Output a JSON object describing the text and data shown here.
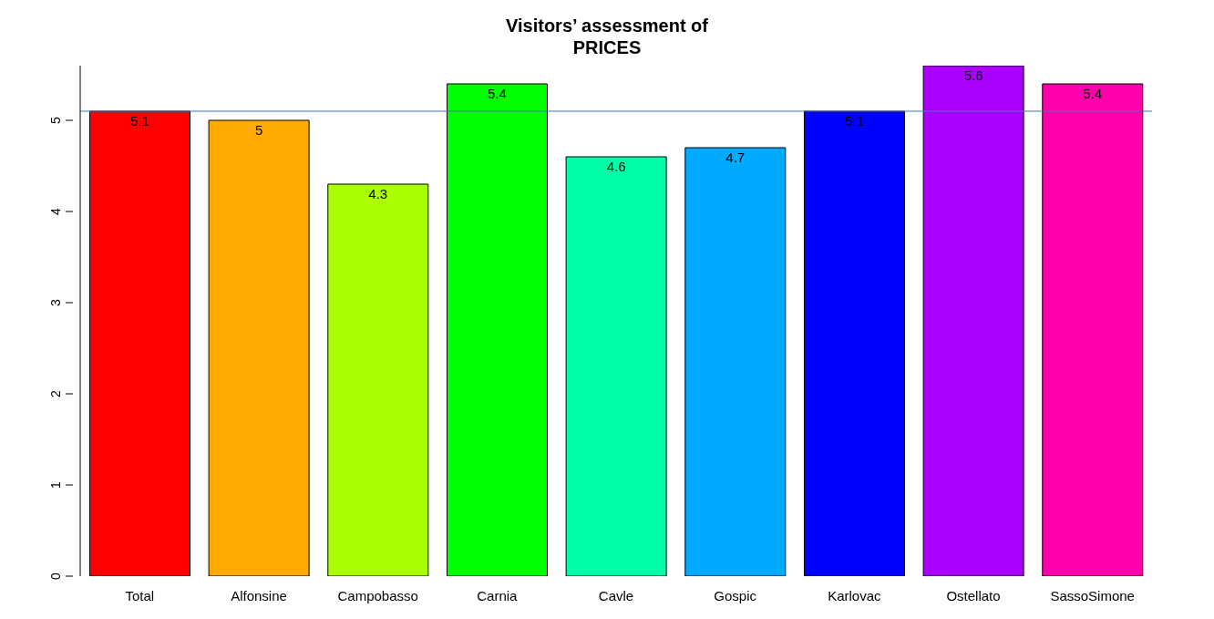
{
  "chart_data": {
    "type": "bar",
    "title": "Visitors’ assessment of\nPRICES",
    "categories": [
      "Total",
      "Alfonsine",
      "Campobasso",
      "Carnia",
      "Cavle",
      "Gospic",
      "Karlovac",
      "Ostellato",
      "SassoSimone"
    ],
    "values": [
      5.1,
      5,
      4.3,
      5.4,
      4.6,
      4.7,
      5.1,
      5.6,
      5.4
    ],
    "colors": [
      "#ff0000",
      "#ffaa00",
      "#aaff00",
      "#00ff00",
      "#00ffaa",
      "#00aaff",
      "#0000ff",
      "#aa00ff",
      "#ff00aa"
    ],
    "ylim": [
      0,
      5.6
    ],
    "yticks": [
      0,
      1,
      2,
      3,
      4,
      5
    ],
    "data_labels": true,
    "ref_lines": [
      {
        "axis": "y",
        "value": 5.1,
        "color": "#4472c4"
      }
    ]
  }
}
